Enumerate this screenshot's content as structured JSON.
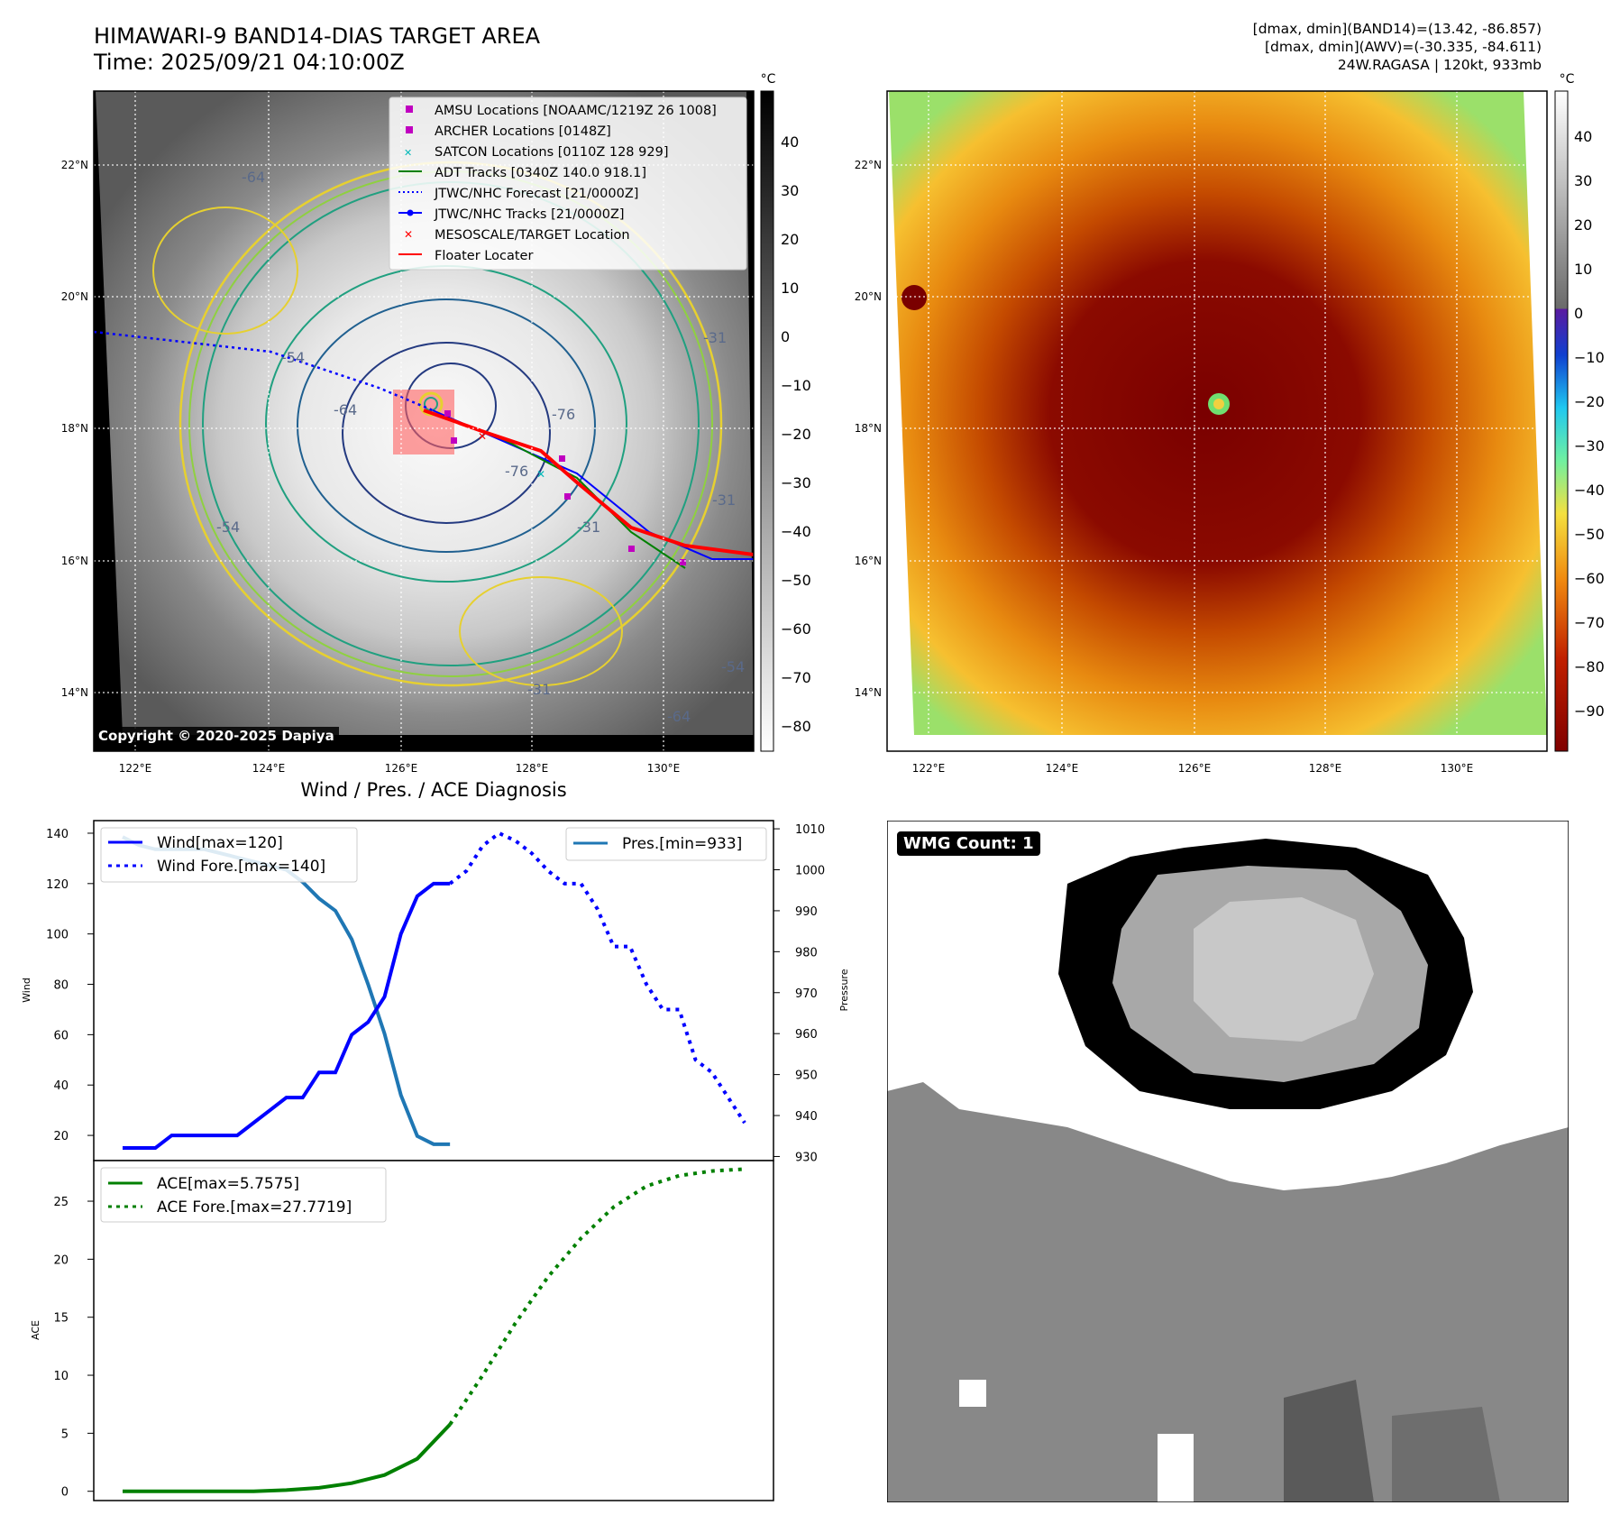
{
  "header": {
    "title_line1": "HIMAWARI-9 BAND14-DIAS TARGET AREA",
    "title_line2": "Time: 2025/09/21 04:10:00Z",
    "stat_line1": "[dmax, dmin](BAND14)=(13.42, -86.857)",
    "stat_line2": "[dmax, dmin](AWV)=(-30.335, -84.611)",
    "stat_line3": "24W.RAGASA | 120kt, 933mb"
  },
  "map_ir": {
    "colorbar_unit": "°C",
    "colorbar_ticks": [
      "40",
      "30",
      "20",
      "10",
      "0",
      "−10",
      "−20",
      "−30",
      "−40",
      "−50",
      "−60",
      "−70",
      "−80"
    ],
    "lat_labels": [
      "22°N",
      "20°N",
      "18°N",
      "16°N",
      "14°N"
    ],
    "lon_labels": [
      "122°E",
      "124°E",
      "126°E",
      "128°E",
      "130°E"
    ],
    "contour_labels": [
      "-64",
      "-54",
      "-64",
      "-76",
      "-76",
      "-31",
      "-31",
      "-54",
      "-64",
      "-54",
      "-31",
      "-31"
    ],
    "copyright": "Copyright © 2020-2025 Dapiya",
    "legend": [
      {
        "label": "AMSU Locations [NOAAMC/1219Z 26 1008]",
        "marker": "square",
        "color": "#c000c0"
      },
      {
        "label": "ARCHER Locations [0148Z]",
        "marker": "square",
        "color": "#c000c0"
      },
      {
        "label": "SATCON Locations [0110Z 128 929]",
        "marker": "x",
        "color": "#00b8b8"
      },
      {
        "label": "ADT Tracks [0340Z 140.0 918.1]",
        "marker": "line",
        "color": "#008000"
      },
      {
        "label": "JTWC/NHC Forecast [21/0000Z]",
        "marker": "dotted",
        "color": "#0000ff"
      },
      {
        "label": "JTWC/NHC Tracks [21/0000Z]",
        "marker": "line-dot",
        "color": "#0000ff"
      },
      {
        "label": "MESOSCALE/TARGET Location",
        "marker": "x",
        "color": "#ff0000"
      },
      {
        "label": "Floater Locater",
        "marker": "line",
        "color": "#ff0000"
      }
    ]
  },
  "map_awv": {
    "colorbar_unit": "°C",
    "colorbar_ticks": [
      "40",
      "30",
      "20",
      "10",
      "0",
      "−10",
      "−20",
      "−30",
      "−40",
      "−50",
      "−60",
      "−70",
      "−80",
      "−90"
    ],
    "lat_labels": [
      "22°N",
      "20°N",
      "18°N",
      "16°N",
      "14°N"
    ],
    "lon_labels": [
      "122°E",
      "124°E",
      "126°E",
      "128°E",
      "130°E"
    ]
  },
  "diagnosis": {
    "title": "Wind / Pres. / ACE Diagnosis",
    "wind_ylabel": "Wind",
    "pres_ylabel": "Pressure",
    "ace_ylabel": "ACE",
    "wind_ticks": [
      "140",
      "120",
      "100",
      "80",
      "60",
      "40",
      "20"
    ],
    "pres_ticks": [
      "1010",
      "1000",
      "990",
      "980",
      "970",
      "960",
      "950",
      "940",
      "930"
    ],
    "ace_ticks": [
      "25",
      "20",
      "15",
      "10",
      "5",
      "0"
    ],
    "legend_wind": "Wind[max=120]",
    "legend_wind_fore": "Wind Fore.[max=140]",
    "legend_pres": "Pres.[min=933]",
    "legend_ace": "ACE[max=5.7575]",
    "legend_ace_fore": "ACE Fore.[max=27.7719]"
  },
  "wmg": {
    "label": "WMG Count: 1"
  },
  "chart_data": [
    {
      "type": "line",
      "title": "Wind / Pres. / ACE Diagnosis",
      "ylabel": "Wind",
      "ylim": [
        10,
        145
      ],
      "series": [
        {
          "name": "Wind[max=120]",
          "x": [
            0,
            1,
            2,
            3,
            4,
            5,
            6,
            7,
            8,
            9,
            10,
            11,
            12,
            13,
            14,
            15,
            16,
            17,
            18,
            19,
            20
          ],
          "values": [
            15,
            15,
            15,
            20,
            20,
            20,
            20,
            20,
            25,
            30,
            35,
            35,
            45,
            45,
            60,
            65,
            75,
            100,
            115,
            120,
            120
          ],
          "color": "#0000ff",
          "style": "solid"
        },
        {
          "name": "Wind Fore.[max=140]",
          "x": [
            20,
            21,
            22,
            23,
            24,
            25,
            26,
            27,
            28,
            29,
            30,
            31,
            32,
            33,
            34,
            35,
            36,
            37,
            38
          ],
          "values": [
            120,
            125,
            135,
            140,
            137,
            132,
            125,
            120,
            120,
            110,
            95,
            95,
            80,
            70,
            70,
            50,
            45,
            35,
            25
          ],
          "color": "#0000ff",
          "style": "dotted"
        }
      ]
    },
    {
      "type": "line",
      "ylabel": "Pressure",
      "ylim": [
        929,
        1012
      ],
      "series": [
        {
          "name": "Pres.[min=933]",
          "x": [
            0,
            1,
            2,
            3,
            4,
            5,
            6,
            7,
            8,
            9,
            10,
            11,
            12,
            13,
            14,
            15,
            16,
            17,
            18,
            19,
            20
          ],
          "values": [
            1008,
            1006,
            1005,
            1005,
            1005,
            1005,
            1004,
            1003,
            1002,
            1001,
            1000,
            997,
            993,
            990,
            983,
            972,
            960,
            945,
            935,
            933,
            933
          ],
          "color": "#1f77b4",
          "style": "solid"
        }
      ]
    },
    {
      "type": "line",
      "ylabel": "ACE",
      "ylim": [
        -0.8,
        28.5
      ],
      "series": [
        {
          "name": "ACE[max=5.7575]",
          "x": [
            0,
            2,
            4,
            6,
            8,
            10,
            12,
            14,
            16,
            18,
            20
          ],
          "values": [
            0,
            0,
            0,
            0,
            0,
            0.1,
            0.3,
            0.7,
            1.4,
            2.8,
            5.76
          ],
          "color": "#008000",
          "style": "solid"
        },
        {
          "name": "ACE Fore.[max=27.7719]",
          "x": [
            20,
            22,
            24,
            26,
            28,
            30,
            32,
            34,
            36,
            38
          ],
          "values": [
            5.76,
            10,
            14.5,
            18.5,
            21.8,
            24.5,
            26.3,
            27.2,
            27.6,
            27.77
          ],
          "color": "#008000",
          "style": "dotted"
        }
      ]
    }
  ]
}
